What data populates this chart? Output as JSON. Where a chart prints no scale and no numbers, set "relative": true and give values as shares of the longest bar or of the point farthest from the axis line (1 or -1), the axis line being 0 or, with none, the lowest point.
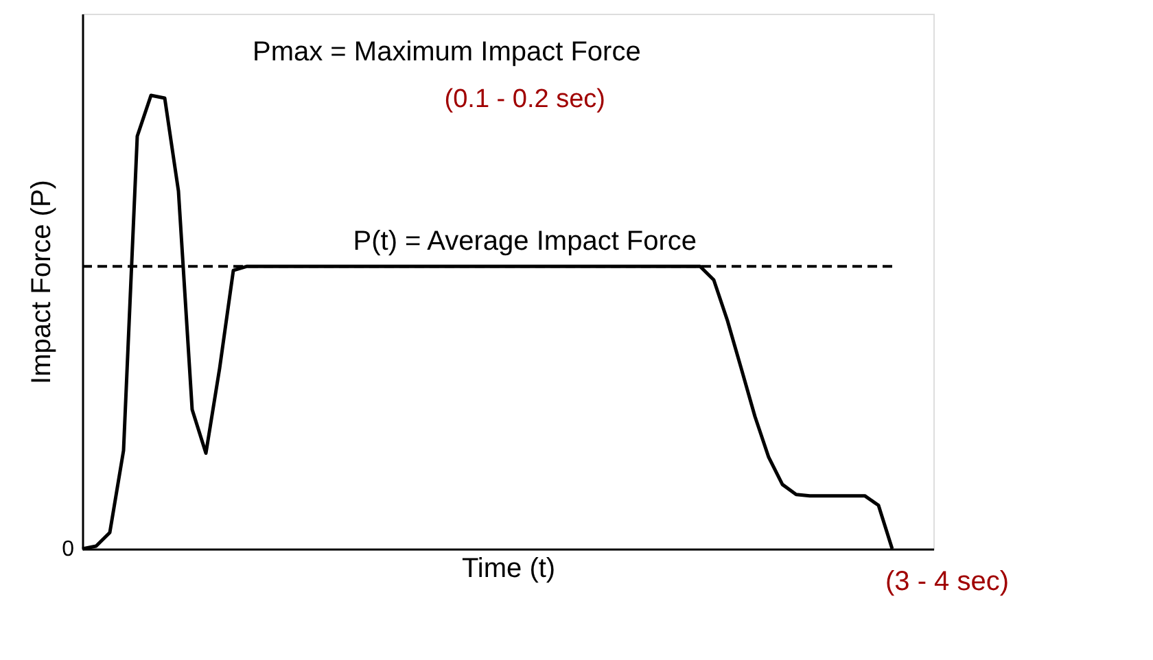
{
  "chart_data": {
    "type": "line",
    "relative": true,
    "xlabel": "Time (t)",
    "ylabel": "Impact Force (P)",
    "categories": [
      null,
      null,
      null,
      null,
      null,
      null,
      null,
      null,
      null,
      null,
      null,
      null,
      null,
      null,
      null,
      null,
      null,
      null,
      null,
      null,
      null,
      null,
      null,
      null,
      null,
      null,
      null,
      null,
      null,
      null,
      null,
      null,
      null,
      null,
      null,
      null,
      null,
      null,
      null,
      null,
      null,
      null,
      null,
      null,
      null,
      null,
      null,
      null,
      null,
      null,
      null,
      null,
      null,
      null,
      null,
      null,
      null,
      null,
      null,
      null
    ],
    "series": [
      {
        "color": "#000000",
        "values": [
          0,
          0.006,
          0.036,
          0.217,
          0.91,
          1,
          0.994,
          0.789,
          0.307,
          0.211,
          0.398,
          0.614,
          0.623,
          0.623,
          0.623,
          0.623,
          0.623,
          0.623,
          0.623,
          0.623,
          0.623,
          0.623,
          0.623,
          0.623,
          0.623,
          0.623,
          0.623,
          0.623,
          0.623,
          0.623,
          0.623,
          0.623,
          0.623,
          0.623,
          0.623,
          0.623,
          0.623,
          0.623,
          0.623,
          0.623,
          0.623,
          0.623,
          0.623,
          0.623,
          0.623,
          0.623,
          0.593,
          0.503,
          0.398,
          0.292,
          0.202,
          0.142,
          0.12,
          0.117,
          0.117,
          0.117,
          0.117,
          0.117,
          0.096,
          0
        ]
      }
    ],
    "ref_lines": [
      {
        "axis": "y",
        "value": 0.623,
        "label": "P(t) = Average Impact Force",
        "color": "#000000",
        "line_style": "dashed"
      }
    ],
    "annotations": [
      "Pmax = Maximum Impact Force",
      "(0.1 - 0.2 sec)",
      "(3 - 4 sec)",
      "0"
    ],
    "grid": false,
    "marker": "none",
    "line_style": "solid"
  }
}
